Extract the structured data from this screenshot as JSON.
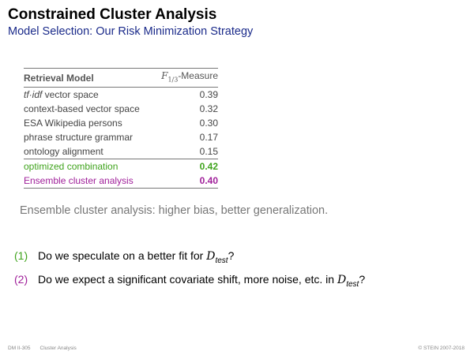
{
  "slide": {
    "title": "Constrained Cluster Analysis",
    "subtitle": "Model Selection: Our Risk Minimization Strategy"
  },
  "table": {
    "header_model": "Retrieval Model",
    "header_measure_symbol": "F",
    "header_measure_subscript": "1/3",
    "header_measure_word": "-Measure",
    "rows": [
      {
        "model": "tf·idf",
        "model_suffix": " vector space",
        "value": "0.39"
      },
      {
        "model": "context-based vector space",
        "value": "0.32"
      },
      {
        "model": "ESA Wikipedia persons",
        "value": "0.30"
      },
      {
        "model": "phrase structure grammar",
        "value": "0.17"
      },
      {
        "model": "ontology alignment",
        "value": "0.15"
      }
    ],
    "highlight_rows": [
      {
        "model": "optimized combination",
        "value": "0.42",
        "color": "#3fa31c"
      },
      {
        "model": "Ensemble cluster analysis",
        "value": "0.40",
        "color": "#a0209a"
      }
    ]
  },
  "summary": "Ensemble cluster analysis: higher bias, better generalization.",
  "questions": [
    {
      "num": "(1)",
      "text_before": "Do we speculate on a better fit for ",
      "var": "D",
      "var_sub": "test",
      "text_after": "?"
    },
    {
      "num": "(2)",
      "text_before": "Do we expect a significant covariate shift, more noise, etc. in ",
      "var": "D",
      "var_sub": "test",
      "text_after": "?"
    }
  ],
  "footer": {
    "page": "DM II-305",
    "section": "Cluster Analysis",
    "copyright": "© STEIN 2007-2018"
  }
}
